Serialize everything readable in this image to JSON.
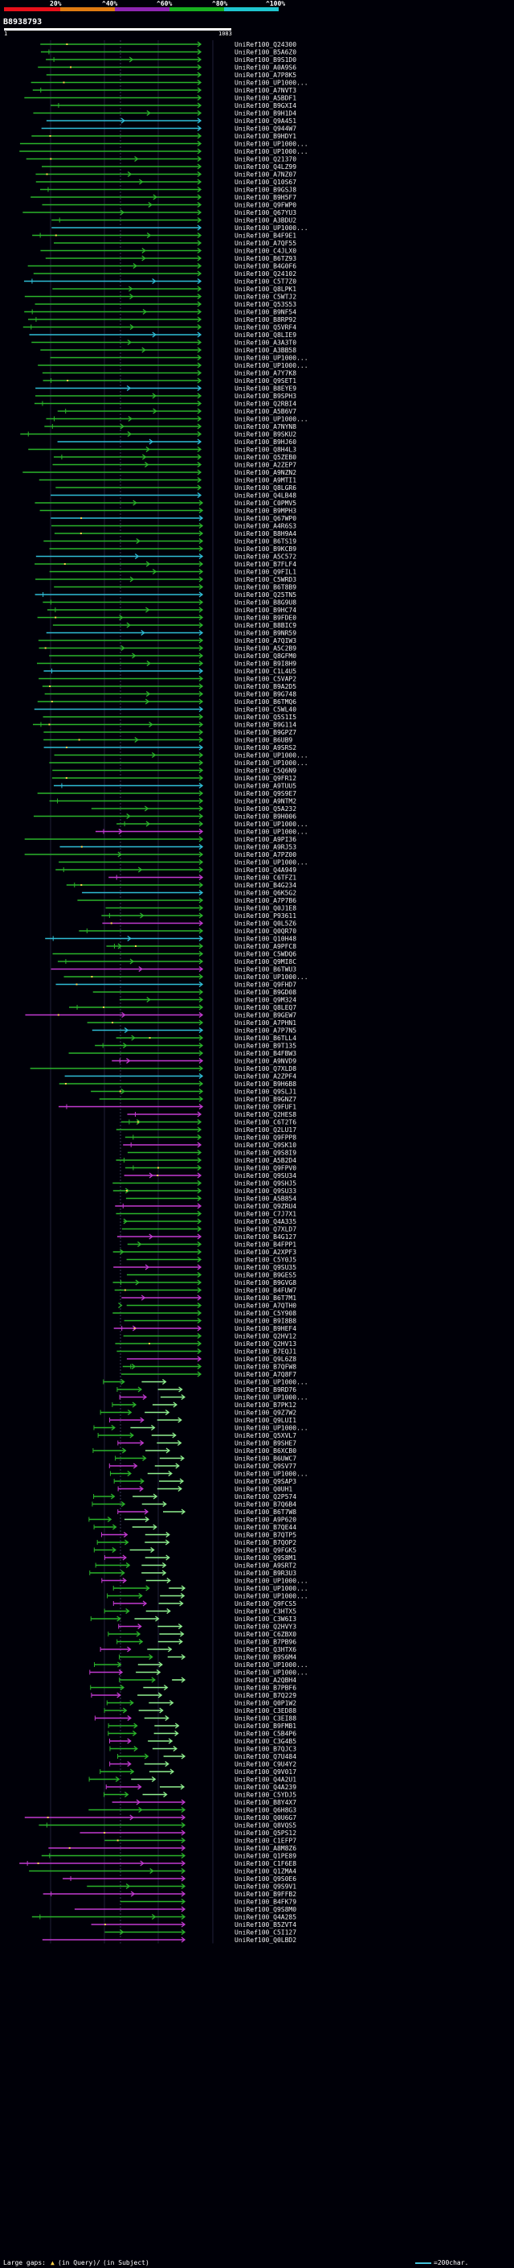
{
  "legend": {
    "pct_labels": [
      "20%",
      "^40%",
      "^60%",
      "^80%",
      "^100%"
    ],
    "colors": [
      "#e8101a",
      "#e07b12",
      "#8e26b3",
      "#18b020",
      "#1fc5cf"
    ]
  },
  "query": {
    "id": "B8938793",
    "start": "1",
    "end": "1083",
    "bar_color": "#ffffff"
  },
  "hit_colors": {
    "green": "#2ab42a",
    "cyan": "#2fbdd5",
    "magenta": "#c23ad0",
    "light_green": "#8ff08f"
  },
  "hits": [
    "UniRef100_Q24300",
    "UniRef100_B5A6Z0",
    "UniRef100_B9S1D0",
    "UniRef100_A0A9S6",
    "UniRef100_A7P8K5",
    "UniRef100_UP1000...",
    "UniRef100_A7NVT3",
    "UniRef100_A5BDF1",
    "UniRef100_B9GXI4",
    "UniRef100_B9H1D4",
    "UniRef100_Q9A451",
    "UniRef100_Q944W7",
    "UniRef100_B9HDY1",
    "UniRef100_UP1000...",
    "UniRef100_UP1000...",
    "UniRef100_Q21370",
    "UniRef100_Q4LZ99",
    "UniRef100_A7NZ07",
    "UniRef100_Q10S67",
    "UniRef100_B9GSJ8",
    "UniRef100_B9H5F7",
    "UniRef100_Q9FWP0",
    "UniRef100_Q67YU3",
    "UniRef100_A3BDU2",
    "UniRef100_UP1000...",
    "UniRef100_B4F9E1",
    "UniRef100_A7QF55",
    "UniRef100_C4JLX0",
    "UniRef100_B6TZ93",
    "UniRef100_B4G0F6",
    "UniRef100_Q24102",
    "UniRef100_C5T7Z0",
    "UniRef100_Q8LPK1",
    "UniRef100_C5WTJ2",
    "UniRef100_Q53S53",
    "UniRef100_B9NF54",
    "UniRef100_B8RP92",
    "UniRef100_Q5VRF4",
    "UniRef100_Q8LIE9",
    "UniRef100_A3A3T0",
    "UniRef100_A3BB58",
    "UniRef100_UP1000...",
    "UniRef100_UP1000...",
    "UniRef100_A7Y7K8",
    "UniRef100_Q9SET1",
    "UniRef100_B8EYE9",
    "UniRef100_B9SPH3",
    "UniRef100_Q2RBI4",
    "UniRef100_A5B6V7",
    "UniRef100_UP1000...",
    "UniRef100_A7NYN8",
    "UniRef100_B9SKU2",
    "UniRef100_B9HJ60",
    "UniRef100_Q8H4L3",
    "UniRef100_Q5ZEB0",
    "UniRef100_A2ZEP7",
    "UniRef100_A9NZN2",
    "UniRef100_A9MTI1",
    "UniRef100_Q8LGR6",
    "UniRef100_Q4LB48",
    "UniRef100_C0PMV5",
    "UniRef100_B9MPH3",
    "UniRef100_Q67WP0",
    "UniRef100_A4R6S3",
    "UniRef100_B8H9A4",
    "UniRef100_B6TS19",
    "UniRef100_B9KCB9",
    "UniRef100_A5C572",
    "UniRef100_B7FLF4",
    "UniRef100_Q9FIL1",
    "UniRef100_C5WRD3",
    "UniRef100_B6T8B9",
    "UniRef100_Q25TN5",
    "UniRef100_B8G9U8",
    "UniRef100_B9HC74",
    "UniRef100_B9FDE0",
    "UniRef100_B8BIC9",
    "UniRef100_B9NR59",
    "UniRef100_A7QIW3",
    "UniRef100_A5C2B9",
    "UniRef100_Q8GFM0",
    "UniRef100_B9I8H9",
    "UniRef100_C1L4U5",
    "UniRef100_C5VAP2",
    "UniRef100_B9A2D5",
    "UniRef100_B9G748",
    "UniRef100_B6TMQ6",
    "UniRef100_C5WL40",
    "UniRef100_Q5S1I5",
    "UniRef100_B9G114",
    "UniRef100_B9GPZ7",
    "UniRef100_B6UB9",
    "UniRef100_A9SRS2",
    "UniRef100_UP1000...",
    "UniRef100_UP1000...",
    "UniRef100_C5Q6N9",
    "UniRef100_Q9FR12",
    "UniRef100_A9TUU5",
    "UniRef100_Q9S9E7",
    "UniRef100_A9NTM2",
    "UniRef100_Q5A232",
    "UniRef100_B9H006",
    "UniRef100_UP1000...",
    "UniRef100_UP1000...",
    "UniRef100_A9PI36",
    "UniRef100_A9RJ53",
    "UniRef100_A7PZ00",
    "UniRef100_UP1000...",
    "UniRef100_Q4A949",
    "UniRef100_C6TFZ1",
    "UniRef100_B4G234",
    "UniRef100_Q6K5G2",
    "UniRef100_A7P7B6",
    "UniRef100_Q0J1E8",
    "UniRef100_P93611",
    "UniRef100_Q0L5Z6",
    "UniRef100_Q0QR70",
    "UniRef100_Q10H48",
    "UniRef100_A9PFC8",
    "UniRef100_C5WDQ6",
    "UniRef100_Q9MI8C",
    "UniRef100_B6TWU3",
    "UniRef100_UP1000...",
    "UniRef100_Q9FHD7",
    "UniRef100_B9GD08",
    "UniRef100_Q9M324",
    "UniRef100_Q8LEQ7",
    "UniRef100_B9GEW7",
    "UniRef100_A7PHN1",
    "UniRef100_A7P7N5",
    "UniRef100_B6TLL4",
    "UniRef100_B9T135",
    "UniRef100_B4FBW3",
    "UniRef100_A9NVD9",
    "UniRef100_Q7XLD8",
    "UniRef100_A2ZPF4",
    "UniRef100_B9H6B8",
    "UniRef100_Q9SLJ1",
    "UniRef100_B9GNZ7",
    "UniRef100_Q9FUF1",
    "UniRef100_Q2HES8",
    "UniRef100_C6T2T6",
    "UniRef100_Q2LU17",
    "UniRef100_Q9FPP8",
    "UniRef100_Q9SK10",
    "UniRef100_Q9S8I9",
    "UniRef100_A5B2D4",
    "UniRef100_Q9FPV0",
    "UniRef100_Q9SU34",
    "UniRef100_Q9SHJ5",
    "UniRef100_Q9SU33",
    "UniRef100_A5B854",
    "UniRef100_Q9ZRU4",
    "UniRef100_C7J7X1",
    "UniRef100_Q4A335",
    "UniRef100_Q7XLD7",
    "UniRef100_B4G127",
    "UniRef100_B4FPP1",
    "UniRef100_A2XPF3",
    "UniRef100_C5Y0J5",
    "UniRef100_Q9SU35",
    "UniRef100_B9GES5",
    "UniRef100_B9GVG8",
    "UniRef100_B4FUW7",
    "UniRef100_B6T7M1",
    "UniRef100_A7QTH0",
    "UniRef100_C5Y908",
    "UniRef100_B9I8B8",
    "UniRef100_B9HEF4",
    "UniRef100_Q2HV12",
    "UniRef100_Q2HV13",
    "UniRef100_B7EQJ1",
    "UniRef100_Q9L6Z8",
    "UniRef100_B7QFW8",
    "UniRef100_A7Q8F7",
    "UniRef100_UP1000...",
    "UniRef100_B9RD76",
    "UniRef100_UP1000...",
    "UniRef100_B7PK12",
    "UniRef100_Q9Z7W2",
    "UniRef100_Q9LUI1",
    "UniRef100_UP1000...",
    "UniRef100_Q5XVL7",
    "UniRef100_B9SHE7",
    "UniRef100_B6XCB0",
    "UniRef100_B6UWC7",
    "UniRef100_Q9SV77",
    "UniRef100_UP1000...",
    "UniRef100_Q9SAP3",
    "UniRef100_Q0UH1",
    "UniRef100_Q2P574",
    "UniRef100_B7Q6B4",
    "UniRef100_B6T7W8",
    "UniRef100_A9P620",
    "UniRef100_B7QE44",
    "UniRef100_B7QTP5",
    "UniRef100_B7QOP2",
    "UniRef100_Q9FGK5",
    "UniRef100_Q9S8M1",
    "UniRef100_A9SRT2",
    "UniRef100_B9R3U3",
    "UniRef100_UP1000...",
    "UniRef100_UP1000...",
    "UniRef100_UP1000...",
    "UniRef100_Q9FCS5",
    "UniRef100_C3HTX5",
    "UniRef100_C3W6I3",
    "UniRef100_Q2HVY3",
    "UniRef100_C6ZBX0",
    "UniRef100_B7PB96",
    "UniRef100_Q3HTX6",
    "UniRef100_B9S6M4",
    "UniRef100_UP1000...",
    "UniRef100_UP1000...",
    "UniRef100_A2QBH4",
    "UniRef100_B7PBF6",
    "UniRef100_B7Q229",
    "UniRef100_Q0P1W2",
    "UniRef100_C3ED88",
    "UniRef100_C3EI88",
    "UniRef100_B9FMB1",
    "UniRef100_C5B4P6",
    "UniRef100_C3G4B5",
    "UniRef100_B7QJC3",
    "UniRef100_Q7U484",
    "UniRef100_C9U4Y2",
    "UniRef100_Q9V017",
    "UniRef100_Q4A2U1",
    "UniRef100_Q4A239",
    "UniRef100_C5YDJ5",
    "UniRef100_B8Y4X7",
    "UniRef100_Q6H8G3",
    "UniRef100_Q0U6G7",
    "UniRef100_Q8VQS5",
    "UniRef100_Q5PS12",
    "UniRef100_C1EFP7",
    "UniRef100_A8M8Z6",
    "UniRef100_Q1PE89",
    "UniRef100_C1F6E8",
    "UniRef100_Q1ZMA4",
    "UniRef100_Q9S0E6",
    "UniRef100_Q9S9V1",
    "UniRef100_B9FFB2",
    "UniRef100_B4FK79",
    "UniRef100_Q9S8M0",
    "UniRef100_Q4A285",
    "UniRef100_B5ZVT4",
    "UniRef100_C5I127",
    "UniRef100_Q0LBD2"
  ],
  "footer": {
    "left": "Large gaps:",
    "in_query": "(in Query)/",
    "in_subject": "(in Subject)",
    "scale": "=200char."
  }
}
